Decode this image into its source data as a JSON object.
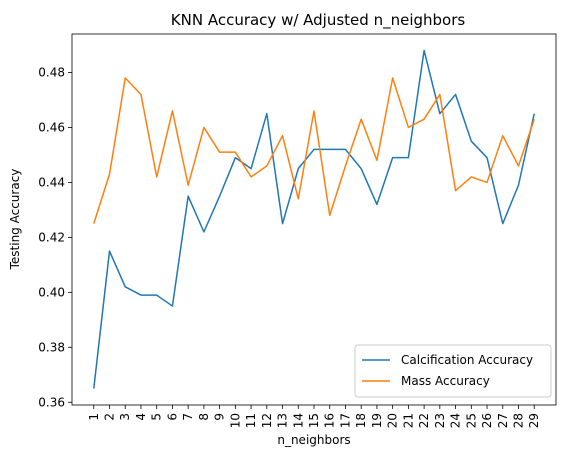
{
  "chart_data": {
    "type": "line",
    "title": "KNN Accuracy w/ Adjusted n_neighbors",
    "xlabel": "n_neighbors",
    "ylabel": "Testing Accuracy",
    "x": [
      1,
      2,
      3,
      4,
      5,
      6,
      7,
      8,
      9,
      10,
      11,
      12,
      13,
      14,
      15,
      16,
      17,
      18,
      19,
      20,
      21,
      22,
      23,
      24,
      25,
      26,
      27,
      28,
      29
    ],
    "x_tick_labels": [
      "1",
      "2",
      "3",
      "4",
      "5",
      "6",
      "7",
      "8",
      "9",
      "10",
      "11",
      "12",
      "13",
      "14",
      "15",
      "16",
      "17",
      "18",
      "19",
      "20",
      "21",
      "22",
      "23",
      "24",
      "25",
      "26",
      "27",
      "28",
      "29"
    ],
    "ylim": [
      0.359,
      0.494
    ],
    "y_ticks": [
      0.36,
      0.38,
      0.4,
      0.42,
      0.44,
      0.46,
      0.48
    ],
    "y_tick_labels": [
      "0.36",
      "0.38",
      "0.40",
      "0.42",
      "0.44",
      "0.46",
      "0.48"
    ],
    "grid": false,
    "legend_position": "lower-right",
    "series": [
      {
        "name": "Calcification Accuracy",
        "color": "#1f77b4",
        "values": [
          0.365,
          0.415,
          0.402,
          0.399,
          0.399,
          0.395,
          0.435,
          0.422,
          0.435,
          0.449,
          0.445,
          0.465,
          0.425,
          0.445,
          0.452,
          0.452,
          0.452,
          0.445,
          0.432,
          0.449,
          0.449,
          0.488,
          0.465,
          0.472,
          0.455,
          0.449,
          0.425,
          0.439,
          0.465
        ]
      },
      {
        "name": "Mass Accuracy",
        "color": "#ff7f0e",
        "values": [
          0.425,
          0.443,
          0.478,
          0.472,
          0.442,
          0.466,
          0.439,
          0.46,
          0.451,
          0.451,
          0.442,
          0.446,
          0.457,
          0.434,
          0.466,
          0.428,
          0.446,
          0.463,
          0.448,
          0.478,
          0.46,
          0.463,
          0.472,
          0.437,
          0.442,
          0.44,
          0.457,
          0.446,
          0.463
        ]
      }
    ]
  }
}
